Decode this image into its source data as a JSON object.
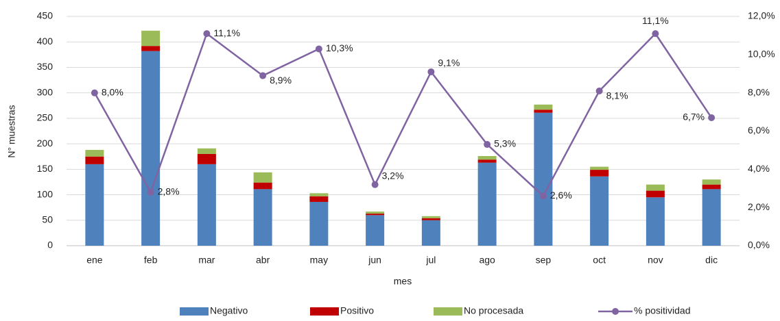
{
  "chart_data": {
    "type": "bar-line",
    "x_label": "mes",
    "y_label": "N° muestras",
    "categories": [
      "ene",
      "feb",
      "mar",
      "abr",
      "may",
      "jun",
      "jul",
      "ago",
      "sep",
      "oct",
      "nov",
      "dic"
    ],
    "series": [
      {
        "name": "Negativo",
        "color": "#4f81bd",
        "type": "bar",
        "values": [
          160,
          382,
          160,
          111,
          86,
          60,
          50,
          163,
          261,
          136,
          95,
          111
        ]
      },
      {
        "name": "Positivo",
        "color": "#c00000",
        "type": "bar",
        "values": [
          15,
          10,
          20,
          13,
          11,
          3,
          4,
          6,
          6,
          13,
          13,
          9
        ]
      },
      {
        "name": "No procesada",
        "color": "#9bbb59",
        "type": "bar",
        "values": [
          13,
          30,
          11,
          20,
          6,
          4,
          4,
          7,
          10,
          6,
          12,
          10
        ]
      },
      {
        "name": "% positividad",
        "color": "#8064a2",
        "type": "line",
        "axis": "y2",
        "values": [
          8.0,
          2.8,
          11.1,
          8.9,
          10.3,
          3.2,
          9.1,
          5.3,
          2.6,
          8.1,
          11.1,
          6.7
        ],
        "value_labels": [
          "8,0%",
          "2,8%",
          "11,1%",
          "8,9%",
          "10,3%",
          "3,2%",
          "9,1%",
          "5,3%",
          "2,6%",
          "8,1%",
          "11,1%",
          "6,7%"
        ]
      }
    ],
    "ylim": [
      0,
      450
    ],
    "yticks": [
      0,
      50,
      100,
      150,
      200,
      250,
      300,
      350,
      400,
      450
    ],
    "y2lim": [
      0,
      12
    ],
    "y2ticks": [
      {
        "value": 0,
        "label": "0,0%"
      },
      {
        "value": 2,
        "label": "2,0%"
      },
      {
        "value": 4,
        "label": "4,0%"
      },
      {
        "value": 6,
        "label": "6,0%"
      },
      {
        "value": 8,
        "label": "8,0%"
      },
      {
        "value": 10,
        "label": "10,0%"
      },
      {
        "value": 12,
        "label": "12,0%"
      }
    ],
    "grid": true,
    "legend": "bottom"
  }
}
